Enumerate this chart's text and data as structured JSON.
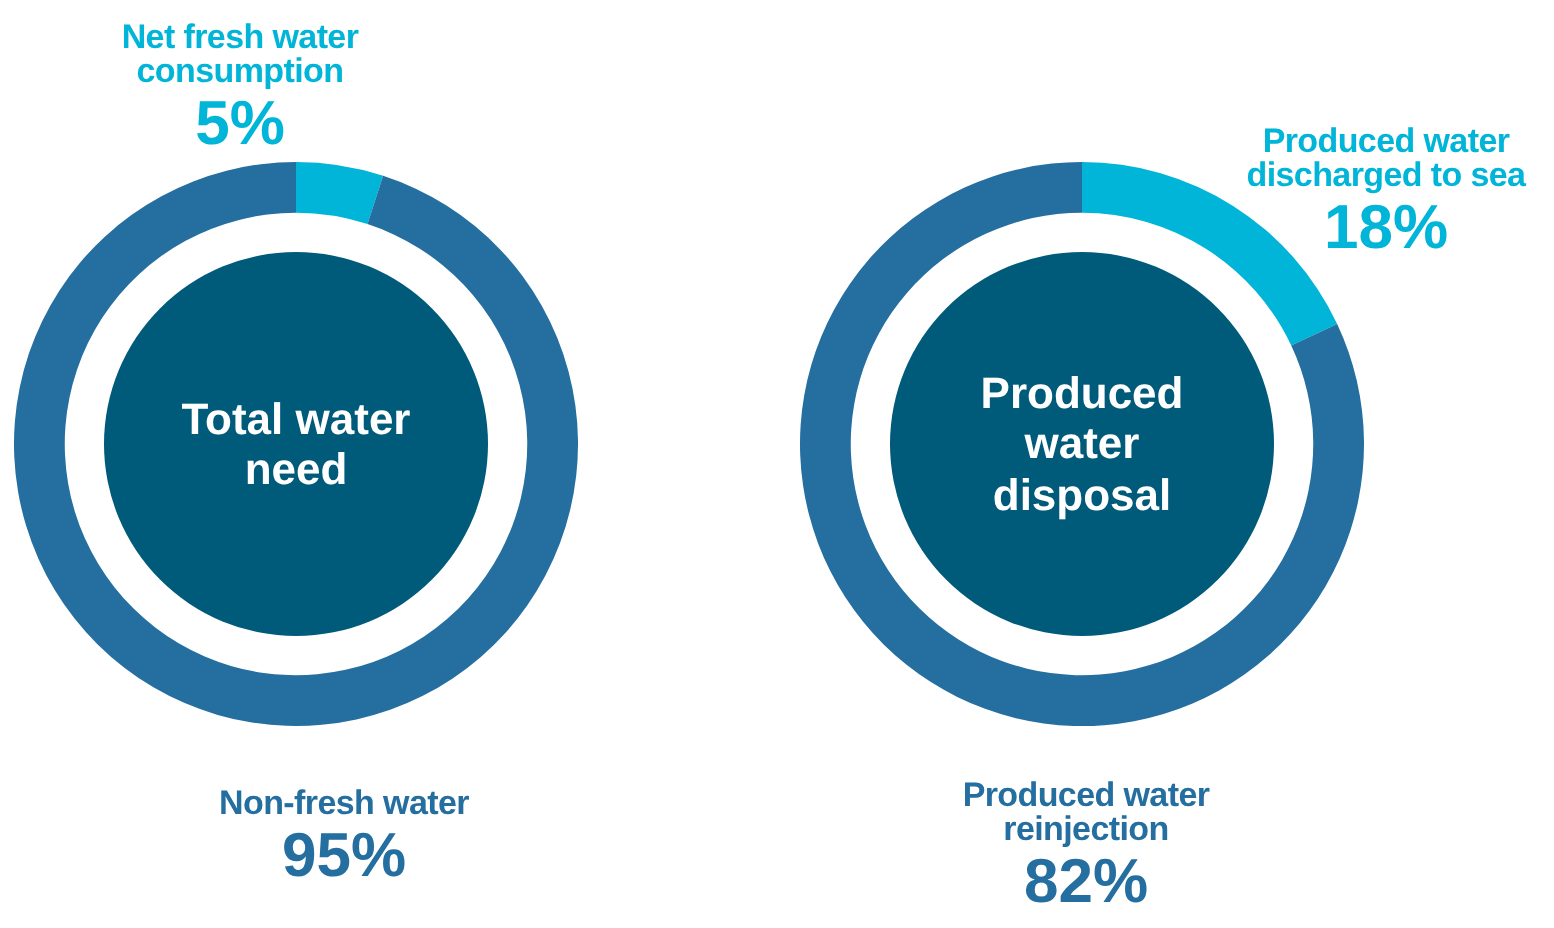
{
  "chart_data": [
    {
      "type": "donut",
      "title": "Total water need",
      "categories": [
        "Net fresh water consumption",
        "Non-fresh water"
      ],
      "values": [
        5,
        95
      ],
      "value_labels": [
        "5%",
        "95%"
      ],
      "colors": [
        "#00b5d8",
        "#246ea0"
      ]
    },
    {
      "type": "donut",
      "title": "Produced water disposal",
      "categories": [
        "Produced water discharged to sea",
        "Produced water reinjection"
      ],
      "values": [
        18,
        82
      ],
      "value_labels": [
        "18%",
        "82%"
      ],
      "colors": [
        "#00b5d8",
        "#246ea0"
      ]
    }
  ]
}
